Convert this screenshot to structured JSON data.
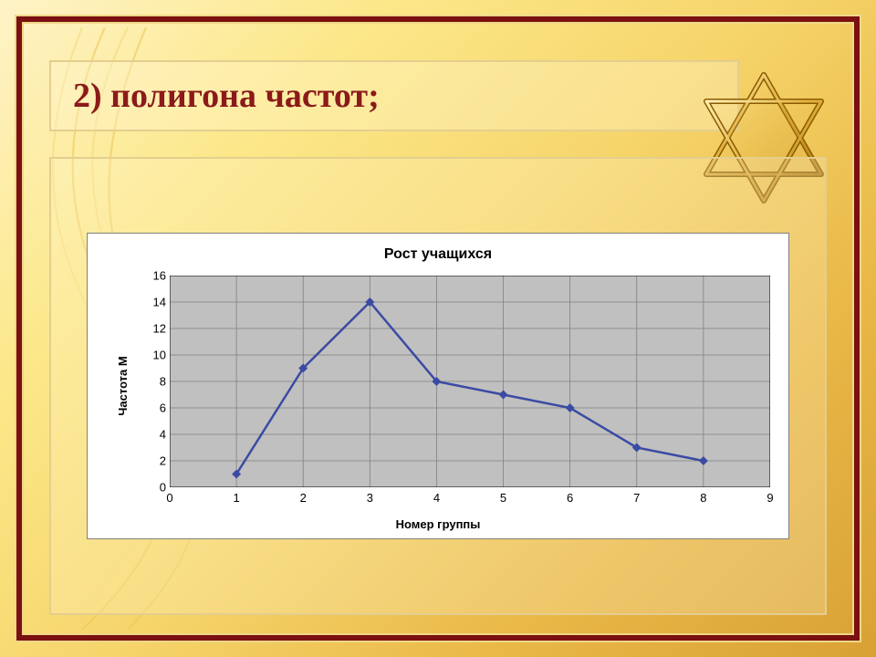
{
  "slide": {
    "title": "2) полигона частот;",
    "title_color": "#8b1a1a",
    "title_fontsize": 38,
    "outer_border_color": "#7b1010",
    "inner_border_color": "#e4ce8f",
    "bg_gradient": [
      "#fef3c7",
      "#fce88a",
      "#f6d56b",
      "#e9b847",
      "#d9a135"
    ],
    "swirl_colors": [
      "#f3d97a",
      "#ecc657"
    ]
  },
  "star": {
    "type": "six-point-star",
    "outline_color": "#8a5b00",
    "fill_gradient": [
      "#fff2b8",
      "#e2b13e",
      "#b47a12"
    ],
    "stroke_width": 6
  },
  "chart": {
    "type": "line",
    "title": "Рост учащихся",
    "title_fontsize": 16,
    "xlabel": "Номер группы",
    "ylabel": "Частота М",
    "label_fontsize": 13,
    "x_values": [
      1,
      2,
      3,
      4,
      5,
      6,
      7,
      8
    ],
    "y_values": [
      1,
      9,
      14,
      8,
      7,
      6,
      3,
      2
    ],
    "line_color": "#3b4ba3",
    "marker_color": "#3b4ba3",
    "marker_shape": "diamond",
    "marker_size": 10,
    "line_width": 2.5,
    "xlim": [
      0,
      9
    ],
    "ylim": [
      0,
      16
    ],
    "xtick_step": 1,
    "ytick_step": 2,
    "xticks": [
      0,
      1,
      2,
      3,
      4,
      5,
      6,
      7,
      8,
      9
    ],
    "yticks": [
      0,
      2,
      4,
      6,
      8,
      10,
      12,
      14,
      16
    ],
    "background_color": "#ffffff",
    "plot_bg_color": "#c0c0c0",
    "grid_color": "#808080",
    "grid_on": true,
    "axis_color": "#000000",
    "chart_border_color": "#808080"
  }
}
